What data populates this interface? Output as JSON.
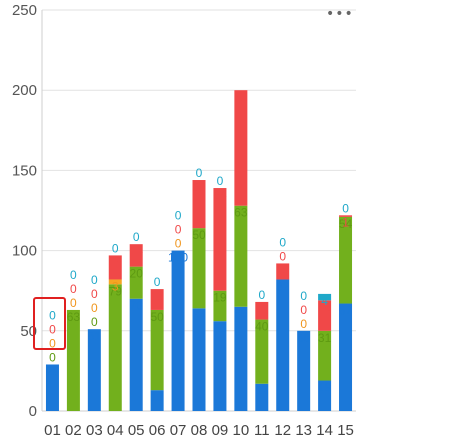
{
  "menu_icon": "more-horizontal-icon",
  "highlight_color": "#e02020",
  "chart_data": {
    "type": "bar",
    "stacked": true,
    "title": "",
    "xlabel": "",
    "ylabel": "",
    "ylim": [
      0,
      250
    ],
    "yticks": [
      0,
      50,
      100,
      150,
      200,
      250
    ],
    "grid": true,
    "legend": "none",
    "categories": [
      "01",
      "02",
      "03",
      "04",
      "05",
      "06",
      "07",
      "08",
      "09",
      "10",
      "11",
      "12",
      "13",
      "14",
      "15"
    ],
    "series": [
      {
        "color": "#1b78d8",
        "label_color": "#1b78d8",
        "values": [
          29,
          0,
          51,
          0,
          70,
          13,
          100,
          64,
          56,
          65,
          17,
          82,
          50,
          19,
          67
        ]
      },
      {
        "color": "#72b01d",
        "label_color": "#5e9a12",
        "values": [
          0,
          63,
          0,
          79,
          20,
          50,
          0,
          50,
          19,
          63,
          40,
          0,
          0,
          31,
          54
        ]
      },
      {
        "color": "#f5a623",
        "label_color": "#f0961e",
        "values": [
          0,
          0,
          0,
          3,
          0,
          0,
          0,
          0,
          0,
          0,
          0,
          0,
          0,
          0,
          0
        ]
      },
      {
        "color": "#f04848",
        "label_color": "#f04848",
        "values": [
          0,
          0,
          0,
          15,
          14,
          13,
          0,
          30,
          64,
          72,
          11,
          10,
          0,
          19,
          1
        ]
      },
      {
        "color": "#1fa8c9",
        "label_color": "#1fa8c9",
        "values": [
          0,
          0,
          0,
          0,
          0,
          0,
          0,
          0,
          0,
          0,
          0,
          0,
          0,
          4,
          0
        ]
      }
    ],
    "label_stack_top": [
      [
        "0",
        "0",
        "0",
        "0"
      ],
      [
        "0",
        "0",
        "0"
      ],
      [
        "0",
        "0",
        "0",
        "0"
      ],
      [
        "0"
      ],
      [
        "0"
      ],
      [
        "0"
      ],
      [
        "0",
        "0",
        "0"
      ],
      [
        "0"
      ],
      [
        "0"
      ],
      [],
      [
        "0"
      ],
      [
        "0",
        "0"
      ],
      [
        "0",
        "0",
        "0"
      ],
      [],
      [
        "0"
      ]
    ]
  }
}
